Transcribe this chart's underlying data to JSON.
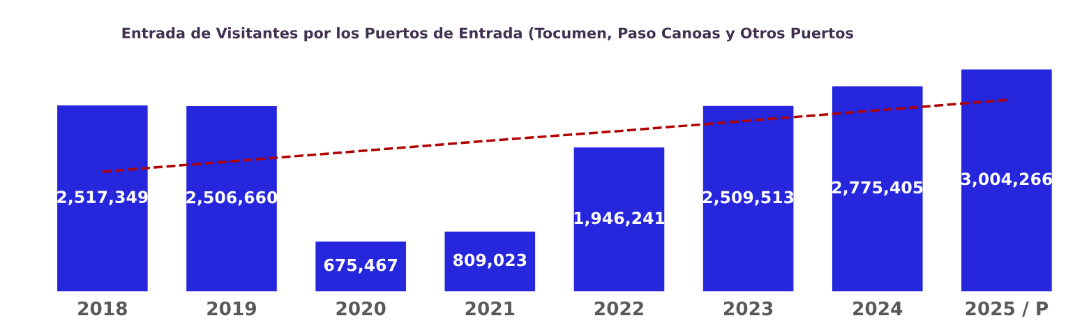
{
  "chart_data": {
    "type": "bar",
    "title": "Entrada de Visitantes por los Puertos de Entrada (Tocumen, Paso Canoas y Otros Puertos",
    "categories": [
      "2018",
      "2019",
      "2020",
      "2021",
      "2022",
      "2023",
      "2024",
      "2025 / P"
    ],
    "series": [
      {
        "color": "#2626dd",
        "values": [
          2517349,
          2506660,
          675467,
          809023,
          1946241,
          2509513,
          2775405,
          3004266
        ],
        "value_labels": [
          "2,517,349",
          "2,506,660",
          "675,467",
          "809,023",
          "1,946,241",
          "2,509,513",
          "2,775,405",
          "3,004,266"
        ]
      },
      {
        "type": "line",
        "color": "#b00000",
        "line_style": "dashed",
        "values": [
          1620000,
          1760000,
          1900000,
          2040000,
          2170000,
          2310000,
          2450000,
          2590000
        ]
      }
    ],
    "grid": false,
    "legend": false
  }
}
